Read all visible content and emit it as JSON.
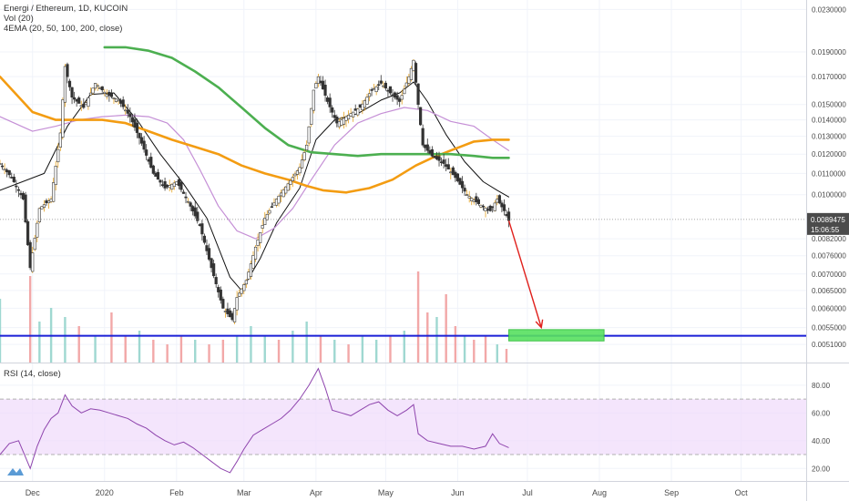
{
  "header": {
    "symbol_line": "Energi / Ethereum, 1D, KUCOIN",
    "vol_label": "Vol (20)",
    "ema_label": "4EMA (20, 50, 100, 200, close)"
  },
  "rsi_panel": {
    "label": "RSI (14, close)",
    "y_ticks": [
      80.0,
      60.0,
      40.0,
      20.0
    ],
    "y_tick_labels": [
      "80.00",
      "60.00",
      "40.00",
      "20.00"
    ],
    "band": [
      30,
      70
    ]
  },
  "price_badges": {
    "last_price": "0.0089475",
    "countdown": "15:06:55"
  },
  "colors": {
    "up": "#26a69a",
    "down": "#4b4b4b",
    "ema20": "#111111",
    "ema50": "#c58fd6",
    "ema100": "#f39c12",
    "ema200": "#4caf50",
    "support": "#1a1fd6",
    "arrow": "#e0201c",
    "target_zone": "#57e060",
    "rsi": "#8e44ad",
    "rsi_band": "#f0dcfb"
  },
  "chart_data": {
    "type": "candlestick",
    "title": "Energi / Ethereum, 1D, KUCOIN",
    "x_ticks": [
      "Dec",
      "2020",
      "Feb",
      "Mar",
      "Apr",
      "May",
      "Jun",
      "Jul",
      "Aug",
      "Sep",
      "Oct"
    ],
    "x_tick_days": [
      0,
      31,
      62,
      91,
      122,
      152,
      183,
      213,
      244,
      275,
      305
    ],
    "y_ticks": [
      0.023,
      0.019,
      0.017,
      0.015,
      0.014,
      0.013,
      0.012,
      0.011,
      0.01,
      0.0082,
      0.0076,
      0.007,
      0.0065,
      0.006,
      0.0055,
      0.0051
    ],
    "y_tick_labels": [
      "0.0230000",
      "0.0190000",
      "0.0170000",
      "0.0150000",
      "0.0140000",
      "0.0130000",
      "0.0120000",
      "0.0110000",
      "0.0100000",
      "0.0082000",
      "0.0076000",
      "0.0070000",
      "0.0065000",
      "0.0060000",
      "0.0055000",
      "0.0051000"
    ],
    "y_scale": "log",
    "price_series": [
      {
        "day": -14,
        "price": 0.0115
      },
      {
        "day": -9,
        "price": 0.0108
      },
      {
        "day": -4,
        "price": 0.0098
      },
      {
        "day": -1,
        "price": 0.0072
      },
      {
        "day": 3,
        "price": 0.0094
      },
      {
        "day": 8,
        "price": 0.0098
      },
      {
        "day": 12,
        "price": 0.0132
      },
      {
        "day": 14,
        "price": 0.0178
      },
      {
        "day": 17,
        "price": 0.0155
      },
      {
        "day": 22,
        "price": 0.0148
      },
      {
        "day": 27,
        "price": 0.0165
      },
      {
        "day": 32,
        "price": 0.0157
      },
      {
        "day": 37,
        "price": 0.0153
      },
      {
        "day": 42,
        "price": 0.0142
      },
      {
        "day": 47,
        "price": 0.0126
      },
      {
        "day": 52,
        "price": 0.011
      },
      {
        "day": 57,
        "price": 0.0103
      },
      {
        "day": 62,
        "price": 0.0106
      },
      {
        "day": 67,
        "price": 0.0097
      },
      {
        "day": 72,
        "price": 0.0087
      },
      {
        "day": 77,
        "price": 0.0072
      },
      {
        "day": 82,
        "price": 0.006
      },
      {
        "day": 86,
        "price": 0.0057
      },
      {
        "day": 88,
        "price": 0.0063
      },
      {
        "day": 92,
        "price": 0.0068
      },
      {
        "day": 96,
        "price": 0.0079
      },
      {
        "day": 100,
        "price": 0.009
      },
      {
        "day": 105,
        "price": 0.0098
      },
      {
        "day": 110,
        "price": 0.0105
      },
      {
        "day": 115,
        "price": 0.0113
      },
      {
        "day": 118,
        "price": 0.0125
      },
      {
        "day": 121,
        "price": 0.016
      },
      {
        "day": 123,
        "price": 0.017
      },
      {
        "day": 127,
        "price": 0.0152
      },
      {
        "day": 131,
        "price": 0.0138
      },
      {
        "day": 136,
        "price": 0.0143
      },
      {
        "day": 141,
        "price": 0.0148
      },
      {
        "day": 146,
        "price": 0.016
      },
      {
        "day": 150,
        "price": 0.0165
      },
      {
        "day": 154,
        "price": 0.0158
      },
      {
        "day": 158,
        "price": 0.0152
      },
      {
        "day": 162,
        "price": 0.017
      },
      {
        "day": 164,
        "price": 0.0183
      },
      {
        "day": 166,
        "price": 0.015
      },
      {
        "day": 168,
        "price": 0.0125
      },
      {
        "day": 172,
        "price": 0.0119
      },
      {
        "day": 177,
        "price": 0.0115
      },
      {
        "day": 182,
        "price": 0.0108
      },
      {
        "day": 187,
        "price": 0.01
      },
      {
        "day": 192,
        "price": 0.0096
      },
      {
        "day": 197,
        "price": 0.0093
      },
      {
        "day": 200,
        "price": 0.0098
      },
      {
        "day": 203,
        "price": 0.0093
      },
      {
        "day": 205,
        "price": 0.0089
      }
    ],
    "ema_series": [
      {
        "name": "EMA 20",
        "points": [
          [
            -14,
            0.0102
          ],
          [
            5,
            0.011
          ],
          [
            15,
            0.0136
          ],
          [
            25,
            0.0157
          ],
          [
            35,
            0.0158
          ],
          [
            45,
            0.014
          ],
          [
            55,
            0.012
          ],
          [
            65,
            0.0105
          ],
          [
            75,
            0.009
          ],
          [
            85,
            0.0069
          ],
          [
            90,
            0.0065
          ],
          [
            98,
            0.0075
          ],
          [
            105,
            0.0088
          ],
          [
            115,
            0.0103
          ],
          [
            122,
            0.0128
          ],
          [
            130,
            0.014
          ],
          [
            140,
            0.0144
          ],
          [
            150,
            0.0153
          ],
          [
            158,
            0.0158
          ],
          [
            164,
            0.0166
          ],
          [
            170,
            0.0152
          ],
          [
            178,
            0.0131
          ],
          [
            186,
            0.0116
          ],
          [
            194,
            0.0106
          ],
          [
            200,
            0.0102
          ],
          [
            205,
            0.0099
          ]
        ]
      },
      {
        "name": "EMA 50",
        "points": [
          [
            -14,
            0.0142
          ],
          [
            0,
            0.0133
          ],
          [
            10,
            0.0136
          ],
          [
            20,
            0.014
          ],
          [
            30,
            0.0142
          ],
          [
            40,
            0.0143
          ],
          [
            50,
            0.0142
          ],
          [
            58,
            0.0138
          ],
          [
            65,
            0.0128
          ],
          [
            72,
            0.0112
          ],
          [
            80,
            0.0095
          ],
          [
            88,
            0.0085
          ],
          [
            96,
            0.0082
          ],
          [
            104,
            0.0086
          ],
          [
            112,
            0.0094
          ],
          [
            120,
            0.0107
          ],
          [
            130,
            0.0125
          ],
          [
            140,
            0.0138
          ],
          [
            150,
            0.0144
          ],
          [
            160,
            0.0148
          ],
          [
            170,
            0.0146
          ],
          [
            180,
            0.0139
          ],
          [
            190,
            0.0136
          ],
          [
            198,
            0.0128
          ],
          [
            205,
            0.0122
          ]
        ]
      },
      {
        "name": "EMA 100",
        "points": [
          [
            -14,
            0.017
          ],
          [
            0,
            0.0145
          ],
          [
            10,
            0.014
          ],
          [
            20,
            0.014
          ],
          [
            30,
            0.014
          ],
          [
            40,
            0.0138
          ],
          [
            50,
            0.0133
          ],
          [
            60,
            0.0128
          ],
          [
            70,
            0.0124
          ],
          [
            80,
            0.012
          ],
          [
            90,
            0.0114
          ],
          [
            100,
            0.011
          ],
          [
            110,
            0.0107
          ],
          [
            118,
            0.0104
          ],
          [
            125,
            0.0102
          ],
          [
            135,
            0.0101
          ],
          [
            145,
            0.0103
          ],
          [
            155,
            0.0107
          ],
          [
            165,
            0.0114
          ],
          [
            172,
            0.0118
          ],
          [
            180,
            0.0122
          ],
          [
            190,
            0.0127
          ],
          [
            198,
            0.0128
          ],
          [
            205,
            0.0128
          ]
        ]
      },
      {
        "name": "EMA 200",
        "points": [
          [
            31,
            0.0194
          ],
          [
            40,
            0.0194
          ],
          [
            50,
            0.0191
          ],
          [
            60,
            0.0185
          ],
          [
            70,
            0.0174
          ],
          [
            80,
            0.0162
          ],
          [
            90,
            0.0148
          ],
          [
            100,
            0.0135
          ],
          [
            110,
            0.0125
          ],
          [
            120,
            0.0121
          ],
          [
            130,
            0.012
          ],
          [
            140,
            0.0119
          ],
          [
            150,
            0.012
          ],
          [
            160,
            0.012
          ],
          [
            170,
            0.012
          ],
          [
            180,
            0.012
          ],
          [
            190,
            0.0119
          ],
          [
            198,
            0.0118
          ],
          [
            205,
            0.0118
          ]
        ]
      }
    ],
    "support_level": 0.0053,
    "target_zone": {
      "x_from": 205,
      "x_to": 246,
      "y_from": 0.00518,
      "y_to": 0.00545
    },
    "arrow": {
      "from": [
        205,
        0.0089
      ],
      "to": [
        219,
        0.0055
      ]
    },
    "last_price": 0.0089475,
    "volume": [
      {
        "day": -14,
        "value": 0.7,
        "dir": "up"
      },
      {
        "day": -1,
        "value": 0.95,
        "dir": "down"
      },
      {
        "day": 3,
        "value": 0.45,
        "dir": "up"
      },
      {
        "day": 8,
        "value": 0.6,
        "dir": "up"
      },
      {
        "day": 14,
        "value": 0.5,
        "dir": "up"
      },
      {
        "day": 20,
        "value": 0.4,
        "dir": "down"
      },
      {
        "day": 27,
        "value": 0.3,
        "dir": "up"
      },
      {
        "day": 34,
        "value": 0.55,
        "dir": "down"
      },
      {
        "day": 40,
        "value": 0.3,
        "dir": "down"
      },
      {
        "day": 46,
        "value": 0.35,
        "dir": "up"
      },
      {
        "day": 52,
        "value": 0.25,
        "dir": "down"
      },
      {
        "day": 58,
        "value": 0.2,
        "dir": "down"
      },
      {
        "day": 64,
        "value": 0.3,
        "dir": "down"
      },
      {
        "day": 70,
        "value": 0.25,
        "dir": "up"
      },
      {
        "day": 76,
        "value": 0.2,
        "dir": "down"
      },
      {
        "day": 82,
        "value": 0.25,
        "dir": "down"
      },
      {
        "day": 88,
        "value": 0.3,
        "dir": "up"
      },
      {
        "day": 94,
        "value": 0.4,
        "dir": "up"
      },
      {
        "day": 100,
        "value": 0.3,
        "dir": "up"
      },
      {
        "day": 106,
        "value": 0.25,
        "dir": "down"
      },
      {
        "day": 112,
        "value": 0.35,
        "dir": "up"
      },
      {
        "day": 118,
        "value": 0.45,
        "dir": "up"
      },
      {
        "day": 124,
        "value": 0.3,
        "dir": "down"
      },
      {
        "day": 130,
        "value": 0.25,
        "dir": "up"
      },
      {
        "day": 136,
        "value": 0.2,
        "dir": "down"
      },
      {
        "day": 142,
        "value": 0.3,
        "dir": "up"
      },
      {
        "day": 148,
        "value": 0.25,
        "dir": "up"
      },
      {
        "day": 154,
        "value": 0.3,
        "dir": "down"
      },
      {
        "day": 160,
        "value": 0.35,
        "dir": "up"
      },
      {
        "day": 166,
        "value": 1.0,
        "dir": "down"
      },
      {
        "day": 170,
        "value": 0.55,
        "dir": "down"
      },
      {
        "day": 174,
        "value": 0.5,
        "dir": "up"
      },
      {
        "day": 178,
        "value": 0.75,
        "dir": "down"
      },
      {
        "day": 182,
        "value": 0.4,
        "dir": "down"
      },
      {
        "day": 186,
        "value": 0.3,
        "dir": "up"
      },
      {
        "day": 190,
        "value": 0.25,
        "dir": "down"
      },
      {
        "day": 195,
        "value": 0.3,
        "dir": "down"
      },
      {
        "day": 200,
        "value": 0.2,
        "dir": "up"
      },
      {
        "day": 204,
        "value": 0.15,
        "dir": "down"
      }
    ],
    "rsi": [
      [
        -14,
        30
      ],
      [
        -10,
        38
      ],
      [
        -6,
        40
      ],
      [
        -3,
        28
      ],
      [
        -1,
        20
      ],
      [
        2,
        36
      ],
      [
        5,
        48
      ],
      [
        8,
        56
      ],
      [
        11,
        60
      ],
      [
        14,
        73
      ],
      [
        17,
        65
      ],
      [
        21,
        60
      ],
      [
        25,
        63
      ],
      [
        29,
        62
      ],
      [
        33,
        60
      ],
      [
        37,
        58
      ],
      [
        41,
        56
      ],
      [
        45,
        52
      ],
      [
        49,
        49
      ],
      [
        53,
        44
      ],
      [
        57,
        40
      ],
      [
        61,
        37
      ],
      [
        65,
        39
      ],
      [
        69,
        35
      ],
      [
        73,
        30
      ],
      [
        77,
        25
      ],
      [
        81,
        20
      ],
      [
        85,
        17
      ],
      [
        88,
        25
      ],
      [
        91,
        34
      ],
      [
        95,
        44
      ],
      [
        99,
        48
      ],
      [
        103,
        52
      ],
      [
        107,
        56
      ],
      [
        111,
        62
      ],
      [
        115,
        70
      ],
      [
        119,
        80
      ],
      [
        123,
        92
      ],
      [
        126,
        78
      ],
      [
        129,
        62
      ],
      [
        133,
        60
      ],
      [
        137,
        58
      ],
      [
        141,
        62
      ],
      [
        145,
        66
      ],
      [
        149,
        68
      ],
      [
        153,
        62
      ],
      [
        157,
        58
      ],
      [
        161,
        62
      ],
      [
        164,
        66
      ],
      [
        166,
        45
      ],
      [
        170,
        40
      ],
      [
        175,
        38
      ],
      [
        180,
        36
      ],
      [
        185,
        36
      ],
      [
        190,
        34
      ],
      [
        195,
        36
      ],
      [
        198,
        45
      ],
      [
        201,
        38
      ],
      [
        205,
        35
      ]
    ]
  }
}
